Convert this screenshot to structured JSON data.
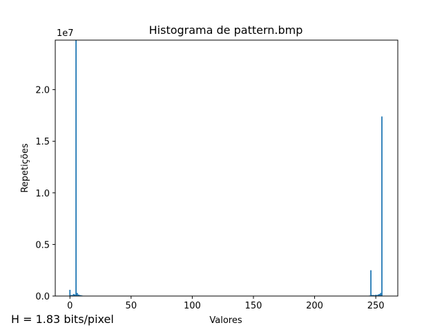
{
  "chart_data": {
    "type": "bar",
    "title": "Histograma de pattern.bmp",
    "xlabel": "Valores",
    "ylabel": "Repetições",
    "y_offset_label": "1e7",
    "xlim": [
      -12,
      268
    ],
    "ylim": [
      0,
      2.48
    ],
    "y_scale_multiplier": 10000000,
    "x_ticks": [
      0,
      50,
      100,
      150,
      200,
      250
    ],
    "x_tick_labels": [
      "0",
      "50",
      "100",
      "150",
      "200",
      "250"
    ],
    "y_ticks": [
      0.0,
      0.5,
      1.0,
      1.5,
      2.0
    ],
    "y_tick_labels": [
      "0.0",
      "0.5",
      "1.0",
      "1.5",
      "2.0"
    ],
    "grid": false,
    "bar_color": "#1f77b4",
    "bins": [
      0,
      1,
      2,
      3,
      4,
      5,
      6,
      7,
      8,
      9,
      10,
      245,
      246,
      247,
      248,
      249,
      250,
      251,
      252,
      253,
      254,
      255
    ],
    "values": [
      0.06,
      0.01,
      0.01,
      0.02,
      0.015,
      2.48,
      0.03,
      0.015,
      0.01,
      0.008,
      0.005,
      0.005,
      0.25,
      0.01,
      0.01,
      0.008,
      0.012,
      0.01,
      0.015,
      0.02,
      0.03,
      1.74
    ]
  },
  "annotation": {
    "entropy_text": "H = 1.83 bits/pixel"
  }
}
